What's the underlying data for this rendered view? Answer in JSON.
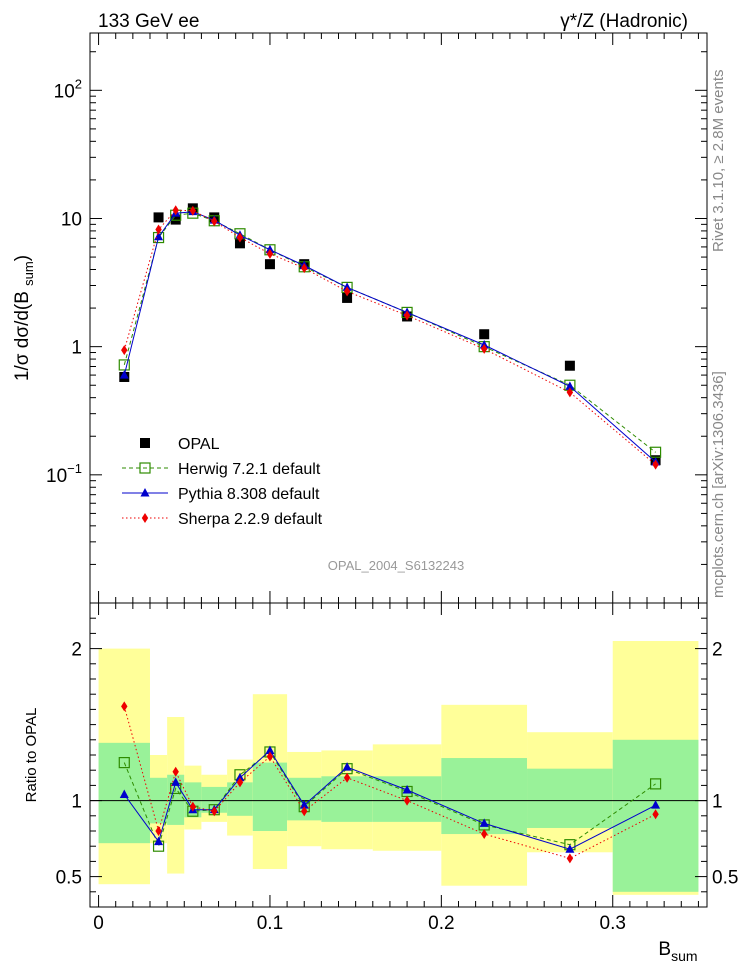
{
  "header": {
    "left_label": "133 GeV ee",
    "right_label": "γ*/Z (Hadronic)"
  },
  "side_labels": {
    "rivet": "Rivet 3.1.10, ≥ 2.8M events",
    "mcplots": "mcplots.cern.ch [arXiv:1306.3436]"
  },
  "analysis_id": "OPAL_2004_S6132243",
  "colors": {
    "data": "#000000",
    "herwig": "#2e8b00",
    "pythia": "#0000cc",
    "sherpa": "#ee0000",
    "band_inner": "#99f299",
    "band_outer": "#ffff99"
  },
  "chart_data": [
    {
      "type": "scatter",
      "ylabel": "1/σ dσ/d(B_sum)",
      "yscale": "log",
      "ylim": [
        0.01,
        280
      ],
      "xlim": [
        -0.005,
        0.355
      ],
      "y_tick_labels": [
        "10^-1",
        "1",
        "10",
        "10^2"
      ],
      "x": [
        0.015,
        0.035,
        0.045,
        0.055,
        0.0675,
        0.0825,
        0.1,
        0.12,
        0.145,
        0.18,
        0.225,
        0.275,
        0.325
      ],
      "series": [
        {
          "name": "OPAL",
          "marker": "square",
          "values": [
            0.58,
            10.2,
            9.8,
            12.0,
            10.2,
            6.4,
            4.4,
            4.4,
            2.4,
            1.72,
            1.25,
            0.71,
            0.13
          ]
        },
        {
          "name": "Herwig 7.2.1 default",
          "marker": "open-square",
          "line": "dashed",
          "values": [
            0.72,
            7.1,
            10.6,
            11.0,
            9.6,
            7.6,
            5.7,
            4.2,
            2.9,
            1.85,
            1.0,
            0.5,
            0.15
          ]
        },
        {
          "name": "Pythia 8.308 default",
          "marker": "triangle",
          "line": "solid",
          "values": [
            0.6,
            7.2,
            11.0,
            11.3,
            9.7,
            7.4,
            5.7,
            4.3,
            2.9,
            1.85,
            1.03,
            0.49,
            0.126
          ]
        },
        {
          "name": "Sherpa 2.2.9 default",
          "marker": "diamond",
          "line": "dotted",
          "values": [
            0.94,
            8.2,
            11.6,
            11.5,
            9.5,
            7.1,
            5.3,
            4.1,
            2.7,
            1.75,
            0.96,
            0.44,
            0.12
          ]
        }
      ]
    },
    {
      "type": "line",
      "ylabel": "Ratio to OPAL",
      "xlabel": "B_sum",
      "ylim": [
        0.3,
        2.3
      ],
      "xlim": [
        -0.005,
        0.355
      ],
      "x_tick_labels": [
        "0",
        "0.1",
        "0.2",
        "0.3"
      ],
      "y_tick_labels": [
        "0.5",
        "1",
        "2"
      ],
      "bins": [
        [
          0.0,
          0.03
        ],
        [
          0.03,
          0.04
        ],
        [
          0.04,
          0.05
        ],
        [
          0.05,
          0.06
        ],
        [
          0.06,
          0.075
        ],
        [
          0.075,
          0.09
        ],
        [
          0.09,
          0.11
        ],
        [
          0.11,
          0.13
        ],
        [
          0.13,
          0.16
        ],
        [
          0.16,
          0.2
        ],
        [
          0.2,
          0.25
        ],
        [
          0.25,
          0.3
        ],
        [
          0.3,
          0.35
        ]
      ],
      "band_inner": [
        [
          0.72,
          1.38
        ],
        [
          0.85,
          1.15
        ],
        [
          0.84,
          1.17
        ],
        [
          0.89,
          1.12
        ],
        [
          0.92,
          1.09
        ],
        [
          0.9,
          1.12
        ],
        [
          0.8,
          1.25
        ],
        [
          0.87,
          1.15
        ],
        [
          0.86,
          1.16
        ],
        [
          0.86,
          1.16
        ],
        [
          0.78,
          1.28
        ],
        [
          0.82,
          1.21
        ],
        [
          0.4,
          1.4
        ]
      ],
      "band_outer": [
        [
          0.45,
          2.0
        ],
        [
          0.72,
          1.3
        ],
        [
          0.52,
          1.55
        ],
        [
          0.81,
          1.23
        ],
        [
          0.86,
          1.17
        ],
        [
          0.77,
          1.27
        ],
        [
          0.55,
          1.7
        ],
        [
          0.7,
          1.32
        ],
        [
          0.68,
          1.33
        ],
        [
          0.67,
          1.37
        ],
        [
          0.44,
          1.63
        ],
        [
          0.66,
          1.45
        ],
        [
          0.38,
          2.05
        ]
      ],
      "x": [
        0.015,
        0.035,
        0.045,
        0.055,
        0.0675,
        0.0825,
        0.1,
        0.12,
        0.145,
        0.18,
        0.225,
        0.275,
        0.325
      ],
      "series": [
        {
          "name": "Herwig 7.2.1 default",
          "values": [
            1.25,
            0.7,
            1.08,
            0.93,
            0.94,
            1.17,
            1.32,
            0.96,
            1.21,
            1.06,
            0.84,
            0.71,
            1.11
          ]
        },
        {
          "name": "Pythia 8.308 default",
          "values": [
            1.04,
            0.73,
            1.12,
            0.94,
            0.94,
            1.15,
            1.33,
            0.97,
            1.22,
            1.07,
            0.85,
            0.68,
            0.97
          ]
        },
        {
          "name": "Sherpa 2.2.9 default",
          "values": [
            1.62,
            0.8,
            1.19,
            0.96,
            0.93,
            1.12,
            1.29,
            0.93,
            1.15,
            1.0,
            0.78,
            0.62,
            0.91
          ]
        }
      ]
    }
  ]
}
